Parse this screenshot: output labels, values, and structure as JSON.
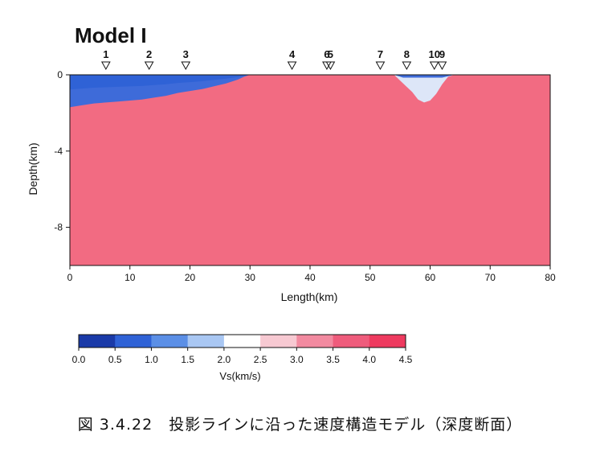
{
  "figure": {
    "title": "Model I",
    "caption": "図 3.4.22　投影ラインに沿った速度構造モデル（深度断面）"
  },
  "chart_data": [
    {
      "type": "heatmap",
      "title": "Model I",
      "xlabel": "Length(km)",
      "ylabel": "Depth(km)",
      "xlim": [
        0,
        80
      ],
      "ylim": [
        -10,
        0
      ],
      "xticks": [
        "0",
        "10",
        "20",
        "30",
        "40",
        "50",
        "60",
        "70",
        "80"
      ],
      "yticks": [
        "0",
        "-4",
        "-8"
      ],
      "stations": [
        {
          "label": "1",
          "x": 6.0
        },
        {
          "label": "2",
          "x": 13.2
        },
        {
          "label": "3",
          "x": 19.3
        },
        {
          "label": "4",
          "x": 37.0
        },
        {
          "label": "5",
          "x": 43.4
        },
        {
          "label": "6",
          "x": 42.8
        },
        {
          "label": "7",
          "x": 51.7
        },
        {
          "label": "8",
          "x": 56.1
        },
        {
          "label": "10",
          "x": 60.7
        },
        {
          "label": "9",
          "x": 62.0
        }
      ],
      "basement_vs": 4.0,
      "layers": [
        {
          "vs": 0.7,
          "bottom_profile": [
            [
              0,
              -1.7
            ],
            [
              2,
              -1.6
            ],
            [
              4,
              -1.5
            ],
            [
              6,
              -1.45
            ],
            [
              8,
              -1.4
            ],
            [
              10,
              -1.35
            ],
            [
              12,
              -1.3
            ],
            [
              14,
              -1.2
            ],
            [
              16,
              -1.1
            ],
            [
              18,
              -0.95
            ],
            [
              20,
              -0.85
            ],
            [
              22,
              -0.75
            ],
            [
              24,
              -0.6
            ],
            [
              26,
              -0.45
            ],
            [
              28,
              -0.25
            ],
            [
              29,
              -0.1
            ],
            [
              30,
              0
            ]
          ]
        },
        {
          "vs": 2.1,
          "bottom_profile": [
            [
              54,
              0
            ],
            [
              55,
              -0.3
            ],
            [
              56,
              -0.6
            ],
            [
              57,
              -0.9
            ],
            [
              58,
              -1.3
            ],
            [
              59,
              -1.45
            ],
            [
              60,
              -1.35
            ],
            [
              61,
              -1.0
            ],
            [
              62,
              -0.5
            ],
            [
              63,
              -0.1
            ],
            [
              64,
              0
            ]
          ]
        }
      ],
      "series": [
        {
          "name": "",
          "values": [
            0.7,
            2.1,
            4.0
          ]
        }
      ]
    },
    {
      "type": "colorbar",
      "xlabel": "Vs(km/s)",
      "ticks": [
        "0.0",
        "0.5",
        "1.0",
        "1.5",
        "2.0",
        "2.5",
        "3.0",
        "3.5",
        "4.0",
        "4.5"
      ],
      "range": [
        0.0,
        4.5
      ],
      "colors": [
        "#1a3aa8",
        "#2f62d6",
        "#5b8fe6",
        "#a9c7f3",
        "#ffffff",
        "#f7c9d2",
        "#f28aa0",
        "#ef5c7c",
        "#ee3a5f"
      ]
    }
  ],
  "colors": {
    "basement": "#f26b82",
    "sediment_blue": "#3e6bd9",
    "sediment_light": "#dde6f8"
  }
}
